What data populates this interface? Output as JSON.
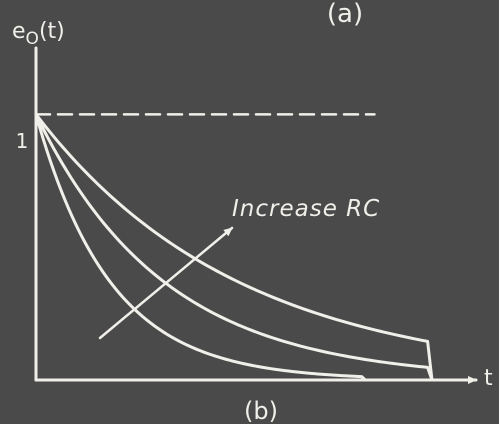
{
  "header_label": "(a)",
  "footer_label": "(b)",
  "chart_data": {
    "type": "line",
    "title": "",
    "ylabel": "e_o(t)",
    "ylabel_base": "e",
    "ylabel_sub": "O",
    "ylabel_tail": "(t)",
    "xlabel": "t",
    "y_tick_label": "1",
    "reference_level": 1,
    "annotation": "Increase RC",
    "series": [
      {
        "time_constant": 0.22
      },
      {
        "time_constant": 0.38
      },
      {
        "time_constant": 0.6
      }
    ],
    "x_range": [
      0,
      1.3
    ],
    "y_range": [
      0,
      1.25
    ],
    "grid": false,
    "legend": "none"
  },
  "colors": {
    "background": "#4a4a4a",
    "ink": "#f0efe9"
  }
}
